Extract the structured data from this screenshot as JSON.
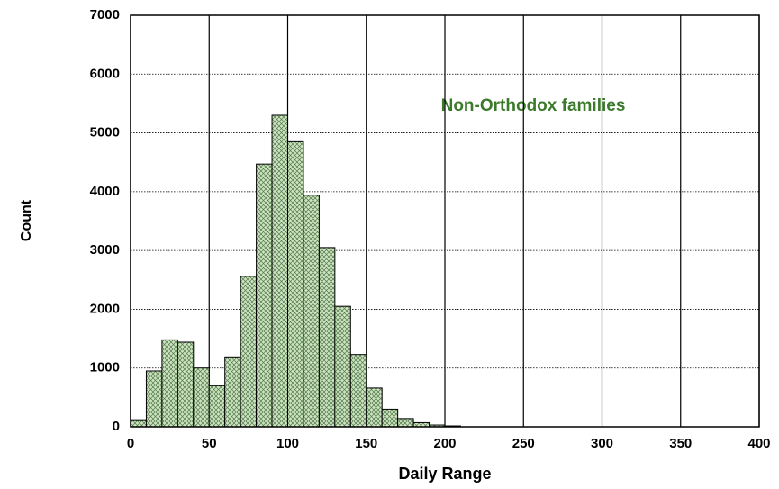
{
  "chart_data": {
    "type": "histogram",
    "xlabel": "Daily Range",
    "ylabel": "Count",
    "annotation": "Non-Orthodox  families",
    "bins": [
      0,
      10,
      20,
      30,
      40,
      50,
      60,
      70,
      80,
      90,
      100,
      110,
      120,
      130,
      140,
      150,
      160,
      170,
      180,
      190,
      200,
      210
    ],
    "counts": [
      120,
      950,
      1480,
      1440,
      1000,
      700,
      1190,
      2560,
      4470,
      5300,
      4850,
      3940,
      3050,
      2050,
      1230,
      660,
      300,
      140,
      70,
      30,
      15
    ],
    "color": "#cfe3c4",
    "xlim": [
      0,
      400
    ],
    "xticks": [
      0,
      50,
      100,
      150,
      200,
      250,
      300,
      350,
      400
    ],
    "ylim": [
      0,
      7000
    ],
    "yticks": [
      0,
      1000,
      2000,
      3000,
      4000,
      5000,
      6000,
      7000
    ],
    "grid": true
  }
}
